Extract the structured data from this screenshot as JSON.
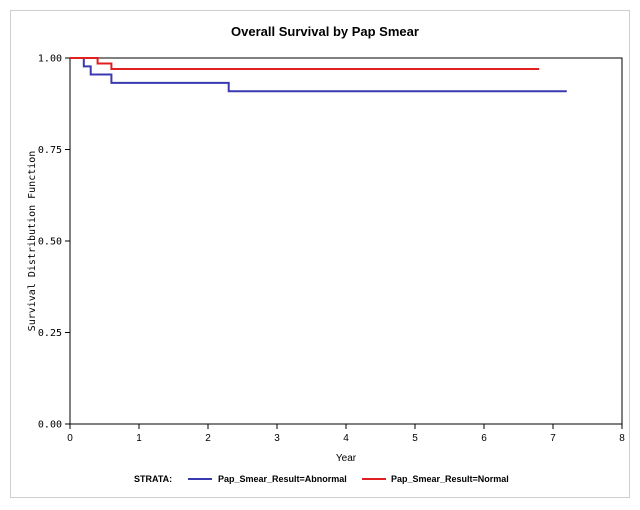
{
  "chart_data": {
    "type": "line",
    "title": "Overall Survival by Pap Smear",
    "xlabel": "Year",
    "ylabel": "Survival Distribution Function",
    "xlim": [
      0,
      8
    ],
    "ylim": [
      0,
      1
    ],
    "x_ticks": [
      "0",
      "1",
      "2",
      "3",
      "4",
      "5",
      "6",
      "7",
      "8"
    ],
    "y_ticks": [
      "0.00",
      "0.25",
      "0.50",
      "0.75",
      "1.00"
    ],
    "grid": false,
    "legend": {
      "title": "STRATA:",
      "placement": "bottom"
    },
    "series": [
      {
        "name": "Pap_Smear_Result=Abnormal",
        "color": "#3a3ab0",
        "step": true,
        "points": [
          [
            0,
            1.0
          ],
          [
            0.2,
            0.977
          ],
          [
            0.3,
            0.955
          ],
          [
            0.6,
            0.932
          ],
          [
            2.3,
            0.909
          ],
          [
            7.2,
            0.909
          ]
        ]
      },
      {
        "name": "Pap_Smear_Result=Normal",
        "color": "#e02020",
        "step": true,
        "points": [
          [
            0,
            1.0
          ],
          [
            0.4,
            0.985
          ],
          [
            0.6,
            0.97
          ],
          [
            6.8,
            0.97
          ]
        ]
      }
    ]
  }
}
